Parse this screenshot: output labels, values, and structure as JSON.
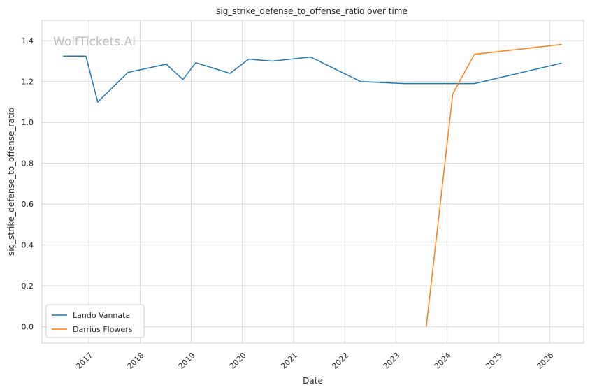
{
  "chart_data": {
    "type": "line",
    "title": "sig_strike_defense_to_offense_ratio over time",
    "xlabel": "Date",
    "ylabel": "sig_strike_defense_to_offense_ratio",
    "watermark": "WolfTickets.AI",
    "xlim": [
      "2016-02-01",
      "2026-09-01"
    ],
    "ylim": [
      -0.08,
      1.5
    ],
    "x_ticks": [
      "2017",
      "2018",
      "2019",
      "2020",
      "2021",
      "2022",
      "2023",
      "2024",
      "2025",
      "2026"
    ],
    "y_ticks": [
      "0.0",
      "0.2",
      "0.4",
      "0.6",
      "0.8",
      "1.0",
      "1.2",
      "1.4"
    ],
    "grid": true,
    "legend_position": "lower-left",
    "series": [
      {
        "name": "Lando Vannata",
        "color": "#1f77b4",
        "points": [
          {
            "x": "2016-07-01",
            "y": 1.325
          },
          {
            "x": "2016-12-10",
            "y": 1.325
          },
          {
            "x": "2017-03-05",
            "y": 1.1
          },
          {
            "x": "2017-10-07",
            "y": 1.245
          },
          {
            "x": "2018-07-07",
            "y": 1.285
          },
          {
            "x": "2018-11-03",
            "y": 1.21
          },
          {
            "x": "2019-02-02",
            "y": 1.292
          },
          {
            "x": "2019-10-05",
            "y": 1.24
          },
          {
            "x": "2020-02-15",
            "y": 1.31
          },
          {
            "x": "2020-08-01",
            "y": 1.3
          },
          {
            "x": "2021-05-01",
            "y": 1.32
          },
          {
            "x": "2022-04-23",
            "y": 1.2
          },
          {
            "x": "2023-03-01",
            "y": 1.19
          },
          {
            "x": "2024-07-13",
            "y": 1.19
          },
          {
            "x": "2026-03-28",
            "y": 1.29
          }
        ]
      },
      {
        "name": "Darrius Flowers",
        "color": "#ff7f0e",
        "points": [
          {
            "x": "2023-08-05",
            "y": 0.0
          },
          {
            "x": "2024-02-10",
            "y": 1.14
          },
          {
            "x": "2024-07-13",
            "y": 1.333
          },
          {
            "x": "2026-03-28",
            "y": 1.382
          }
        ]
      }
    ]
  }
}
